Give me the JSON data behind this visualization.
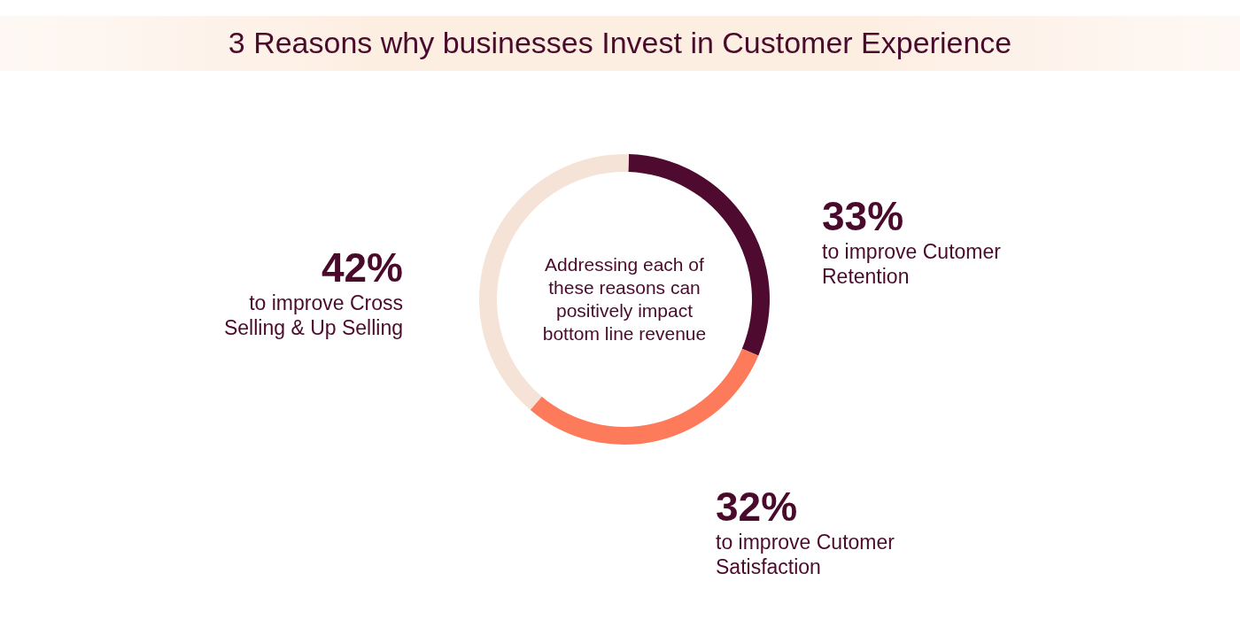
{
  "chart_data": {
    "type": "donut",
    "title": "3 Reasons why businesses Invest in Customer Experience",
    "categories": [
      "to improve Cutomer Retention",
      "to improve Cutomer Satisfaction",
      "to improve Cross Selling & Up Selling"
    ],
    "values": [
      33,
      32,
      42
    ],
    "value_labels": [
      "33%",
      "32%",
      "42%"
    ],
    "colors": [
      "#4f0a2f",
      "#fd7b5a",
      "#f6e3d7"
    ],
    "annotations": [
      "Addressing each of these reasons can positively impact bottom line revenue"
    ]
  }
}
